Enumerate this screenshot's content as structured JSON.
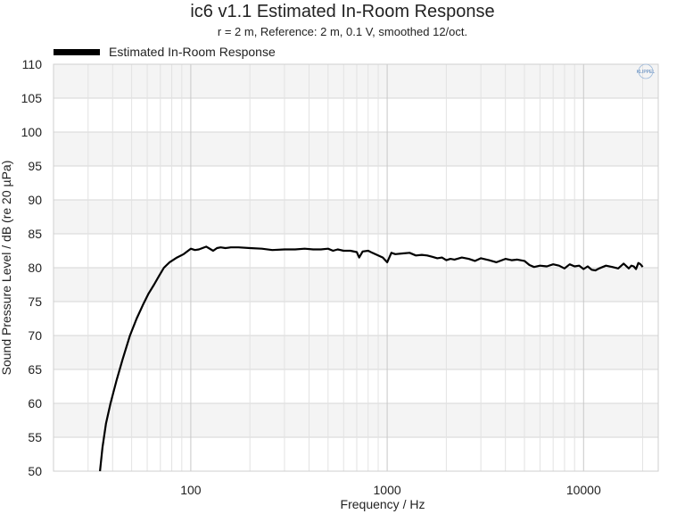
{
  "chart_data": {
    "type": "line",
    "title": "ic6 v1.1 Estimated In-Room Response",
    "subtitle": "r = 2 m,  Reference: 2 m, 0.1 V, smoothed 12/oct.",
    "xlabel": "Frequency / Hz",
    "ylabel": "Sound Pressure Level / dB (re 20 µPa)",
    "x_scale": "log",
    "xlim": [
      20,
      24000
    ],
    "ylim": [
      50,
      110
    ],
    "x_ticks": [
      100,
      1000,
      10000
    ],
    "x_tick_labels": [
      "100",
      "1000",
      "10000"
    ],
    "y_ticks": [
      50,
      55,
      60,
      65,
      70,
      75,
      80,
      85,
      90,
      95,
      100,
      105,
      110
    ],
    "y_tick_labels": [
      "50",
      "55",
      "60",
      "65",
      "70",
      "75",
      "80",
      "85",
      "90",
      "95",
      "100",
      "105",
      "110"
    ],
    "grid": true,
    "legend_position": "top-left",
    "watermark": "KLIPPEL",
    "series": [
      {
        "name": "Estimated In-Room Response",
        "color": "#000000",
        "x": [
          34.5,
          35.5,
          37,
          39,
          42,
          45,
          49,
          53,
          57,
          61,
          65,
          69,
          73,
          78,
          85,
          92,
          100,
          105,
          110,
          120,
          130,
          136,
          142,
          150,
          160,
          175,
          200,
          230,
          260,
          300,
          340,
          380,
          420,
          460,
          500,
          530,
          560,
          600,
          650,
          700,
          720,
          750,
          800,
          840,
          900,
          950,
          1000,
          1050,
          1100,
          1200,
          1300,
          1400,
          1500,
          1600,
          1700,
          1800,
          1900,
          2000,
          2100,
          2200,
          2400,
          2600,
          2800,
          3000,
          3300,
          3600,
          4000,
          4300,
          4600,
          5000,
          5300,
          5600,
          6000,
          6500,
          7000,
          7500,
          8000,
          8500,
          9000,
          9500,
          10000,
          10500,
          11000,
          11500,
          12000,
          13000,
          14000,
          15000,
          16000,
          17000,
          17500,
          18000,
          18500,
          19000,
          19500,
          20000
        ],
        "y": [
          50,
          53.5,
          57,
          60,
          63.5,
          66.5,
          70,
          72.5,
          74.5,
          76.2,
          77.5,
          78.8,
          80,
          80.8,
          81.5,
          82,
          82.8,
          82.6,
          82.7,
          83.1,
          82.5,
          82.9,
          83,
          82.9,
          83,
          83,
          82.9,
          82.8,
          82.6,
          82.7,
          82.7,
          82.8,
          82.7,
          82.7,
          82.8,
          82.5,
          82.7,
          82.5,
          82.5,
          82.3,
          81.5,
          82.4,
          82.5,
          82.2,
          81.8,
          81.5,
          80.8,
          82.2,
          82,
          82.1,
          82.2,
          81.8,
          81.9,
          81.8,
          81.6,
          81.4,
          81.5,
          81.1,
          81.3,
          81.2,
          81.5,
          81.3,
          81,
          81.4,
          81.1,
          80.8,
          81.3,
          81.1,
          81.2,
          81,
          80.4,
          80.1,
          80.3,
          80.2,
          80.5,
          80.3,
          79.9,
          80.5,
          80.2,
          80.3,
          79.8,
          80.2,
          79.7,
          79.6,
          79.9,
          80.3,
          80.1,
          79.9,
          80.6,
          79.9,
          80.3,
          80.2,
          79.8,
          80.7,
          80.5,
          80.1
        ]
      }
    ]
  }
}
